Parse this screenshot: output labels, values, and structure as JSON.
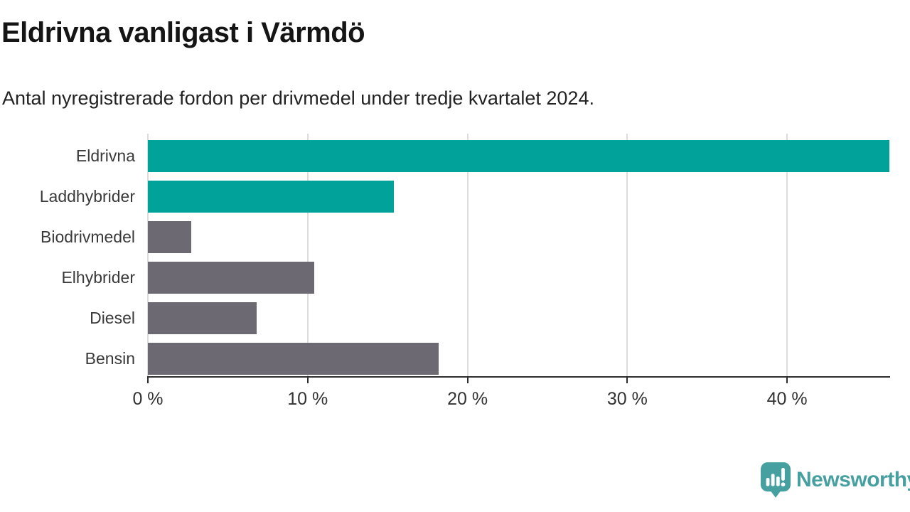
{
  "header": {
    "title": "Eldrivna vanligast i Värmdö",
    "subtitle": "Antal nyregistrerade fordon per drivmedel under tredje kvartalet 2024."
  },
  "chart_data": {
    "type": "bar",
    "orientation": "horizontal",
    "title": "Eldrivna vanligast i Värmdö",
    "subtitle": "Antal nyregistrerade fordon per drivmedel under tredje kvartalet 2024.",
    "categories": [
      "Eldrivna",
      "Laddhybrider",
      "Biodrivmedel",
      "Elhybrider",
      "Diesel",
      "Bensin"
    ],
    "values": [
      46.4,
      15.4,
      2.7,
      10.4,
      6.8,
      18.2
    ],
    "unit": "%",
    "xlabel": "",
    "ylabel": "",
    "xlim": [
      0,
      46.4
    ],
    "xticks": [
      0,
      10,
      20,
      30,
      40
    ],
    "xtick_labels": [
      "0 %",
      "10 %",
      "20 %",
      "30 %",
      "40 %"
    ],
    "grid": true,
    "legend": "none",
    "bar_colors": [
      "#00a29a",
      "#00a29a",
      "#6c6973",
      "#6c6973",
      "#6c6973",
      "#6c6973"
    ]
  },
  "colors": {
    "highlight_teal": "#00a29a",
    "neutral_gray": "#6c6973",
    "gridline": "#dcdcdc",
    "axis": "#2e2e2e",
    "logo_teal": "#46a0a0"
  },
  "footer": {
    "brand": "Newsworthy"
  }
}
